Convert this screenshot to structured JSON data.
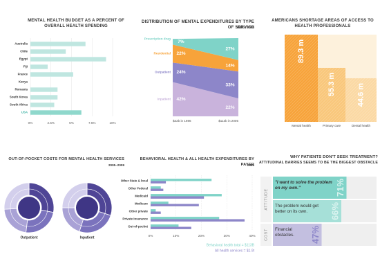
{
  "chart_data": [
    {
      "type": "bar",
      "title": "MENTAL HEALTH BUDGET AS A PERCENT OF OVERALL HEALTH SPENDING",
      "categories": [
        "Australia",
        "Chile",
        "Egypt",
        "Fiji",
        "France",
        "Kenya",
        "Romania",
        "South Korea",
        "South Africa",
        "USA"
      ],
      "values": [
        6.7,
        4.3,
        9.2,
        2.1,
        5.2,
        0,
        3.3,
        3.3,
        2.9,
        6.2
      ],
      "colors": [
        "#bfe6e0",
        "#bfe6e0",
        "#bfe6e0",
        "#bfe6e0",
        "#bfe6e0",
        "#bfe6e0",
        "#bfe6e0",
        "#bfe6e0",
        "#bfe6e0",
        "#8fd8cc"
      ],
      "xlim": [
        0,
        10
      ],
      "xticks": [
        {
          "value": 0,
          "label": "0%"
        },
        {
          "value": 2.5,
          "label": "2.5%"
        },
        {
          "value": 5,
          "label": "5%"
        },
        {
          "value": 7.5,
          "label": "7.5%"
        },
        {
          "value": 10,
          "label": "10%"
        }
      ]
    },
    {
      "type": "area",
      "title": "DISTRIBUTION OF MENTAL EXPENDITURES BY TYPE OF SERVICE",
      "subtitle": "1986 & 2005",
      "categories": [
        "$32b in 1986",
        "$113b in 2005"
      ],
      "series": [
        {
          "name": "Inpatient",
          "color": "#c9b3dc",
          "values": [
            42,
            22
          ],
          "value_labels": [
            "42%",
            "22%"
          ]
        },
        {
          "name": "Outpatient",
          "color": "#8d86c9",
          "values": [
            24,
            33
          ],
          "value_labels": [
            "24%",
            "33%"
          ]
        },
        {
          "name": "Residential",
          "color": "#f7a33a",
          "values": [
            22,
            14
          ],
          "value_labels": [
            "22%",
            "14%"
          ]
        },
        {
          "name": "Prescription drug",
          "color": "#7fd3c8",
          "values": [
            7,
            27
          ],
          "value_labels": [
            "7%",
            "27%"
          ]
        }
      ]
    },
    {
      "type": "column",
      "title": "AMERICANS SHORTAGE AREAS OF ACCESS TO HEALTH PROFESSIONALS",
      "categories": [
        "Mental health",
        "Primary care",
        "Dental health"
      ],
      "values": [
        89.3,
        55.3,
        44.6
      ],
      "value_labels": [
        "89.3 m",
        "55.3 m",
        "44.6 m"
      ],
      "colors": [
        "#f7a33a",
        "#f9c77b",
        "#fbd9a4"
      ]
    },
    {
      "type": "donut",
      "title": "OUT-OF-POCKET COSTS FOR MENTAL HEALTH SERVICES",
      "subtitle": "2005–2009",
      "colors": [
        "#4f4596",
        "#7b73bd",
        "#a9a2d6",
        "#d3cfec"
      ],
      "series": [
        {
          "name": "Outpatient",
          "values": [
            28,
            24,
            22,
            26
          ]
        },
        {
          "name": "Inpatient",
          "values": [
            30,
            25,
            20,
            25
          ]
        }
      ]
    },
    {
      "type": "bar",
      "title": "BEHAVIORAL HEALTH & ALL HEALTH EXPENDITURES BY PAYER",
      "subtitle": "2005",
      "categories": [
        "Other State & local",
        "Other Federal",
        "Medicaid",
        "Medicare",
        "Other private",
        "Private insurance",
        "Out-of-pocket"
      ],
      "series": [
        {
          "name": "Behavioral health total = $113B",
          "color": "#7fd3c8",
          "values": [
            24,
            4,
            28,
            7,
            2,
            27,
            11
          ]
        },
        {
          "name": "All health services = $1.9t",
          "color": "#8d86c9",
          "values": [
            6,
            5,
            21,
            19,
            4,
            37,
            16
          ]
        }
      ],
      "xlim": [
        0,
        40
      ],
      "xticks": [
        {
          "value": 0,
          "label": "0%"
        },
        {
          "value": 10,
          "label": "10%"
        },
        {
          "value": 20,
          "label": "20%"
        },
        {
          "value": 30,
          "label": "30%"
        },
        {
          "value": 40,
          "label": "40%"
        }
      ]
    },
    {
      "type": "bar",
      "title": "WHY PATIENTS DON'T SEEK TREATMENT?",
      "subtitle": "ATTITUDINAL BARRIES SEEMS TO BE THE BIGGEST OBSTACLE",
      "sections": [
        {
          "label": "ATTITUDE",
          "categories": [
            "\"I want to solve the problem on my own.\"",
            "The problem would get better on its own."
          ],
          "values": [
            71,
            66
          ],
          "value_labels": [
            "71%",
            "66%"
          ],
          "colors": [
            "#7fd3c8",
            "#a6e0d8"
          ]
        },
        {
          "label": "COST",
          "categories": [
            "Financial obstacles."
          ],
          "values": [
            47
          ],
          "value_labels": [
            "47%"
          ],
          "colors": [
            "#c3bfe0"
          ]
        }
      ]
    }
  ]
}
